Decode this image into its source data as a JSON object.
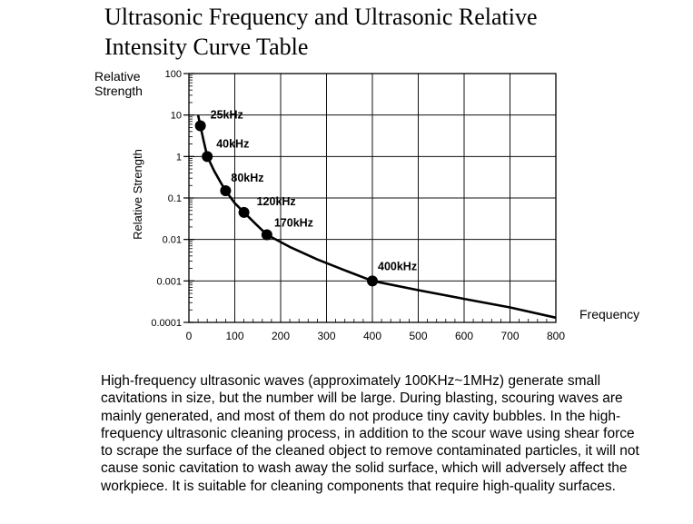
{
  "title_lines": [
    "Ultrasonic Frequency and Ultrasonic Relative",
    "Intensity Curve Table"
  ],
  "chart_data": {
    "type": "line",
    "ylabel_outer_lines": [
      "Relative",
      "Strength"
    ],
    "ylabel_rotated": "Relative Strength",
    "xlabel": "Frequency",
    "yscale": "log",
    "xlim": [
      0,
      800
    ],
    "ylim": [
      0.0001,
      100
    ],
    "grid": true,
    "x_ticks": [
      0,
      100,
      200,
      300,
      400,
      500,
      600,
      700,
      800
    ],
    "y_ticks": [
      {
        "value": 100,
        "label": "100"
      },
      {
        "value": 10,
        "label": "10"
      },
      {
        "value": 1,
        "label": "1"
      },
      {
        "value": 0.1,
        "label": "0.1"
      },
      {
        "value": 0.01,
        "label": "0.01"
      },
      {
        "value": 0.001,
        "label": "0.001"
      },
      {
        "value": 0.0001,
        "label": "0.0001"
      }
    ],
    "points": [
      {
        "x": 25,
        "y": 5.5,
        "label": "25kHz"
      },
      {
        "x": 40,
        "y": 1,
        "label": "40kHz"
      },
      {
        "x": 80,
        "y": 0.15,
        "label": "80kHz"
      },
      {
        "x": 120,
        "y": 0.045,
        "label": "120kHz"
      },
      {
        "x": 170,
        "y": 0.013,
        "label": "170kHz"
      },
      {
        "x": 400,
        "y": 0.001,
        "label": "400kHz"
      }
    ],
    "curve": [
      [
        20,
        10
      ],
      [
        25,
        5.5
      ],
      [
        32,
        2.4
      ],
      [
        40,
        1
      ],
      [
        55,
        0.45
      ],
      [
        70,
        0.23
      ],
      [
        80,
        0.15
      ],
      [
        100,
        0.075
      ],
      [
        120,
        0.045
      ],
      [
        145,
        0.024
      ],
      [
        170,
        0.013
      ],
      [
        220,
        0.0066
      ],
      [
        280,
        0.0033
      ],
      [
        340,
        0.0018
      ],
      [
        400,
        0.001
      ],
      [
        500,
        0.0006
      ],
      [
        600,
        0.00037
      ],
      [
        700,
        0.00023
      ],
      [
        800,
        0.00013
      ]
    ]
  },
  "paragraph": " High-frequency ultrasonic waves (approximately 100KHz~1MHz) generate small cavitations in size, but the number will be large. During blasting, scouring waves are mainly generated, and most of them do not produce tiny cavity bubbles. In the high-frequency ultrasonic cleaning process, in addition to the scour wave using shear force to scrape the surface of the cleaned object to remove contaminated particles, it will not cause sonic cavitation to wash away the solid surface, which will adversely affect the workpiece. It is suitable for cleaning components that require high-quality surfaces."
}
